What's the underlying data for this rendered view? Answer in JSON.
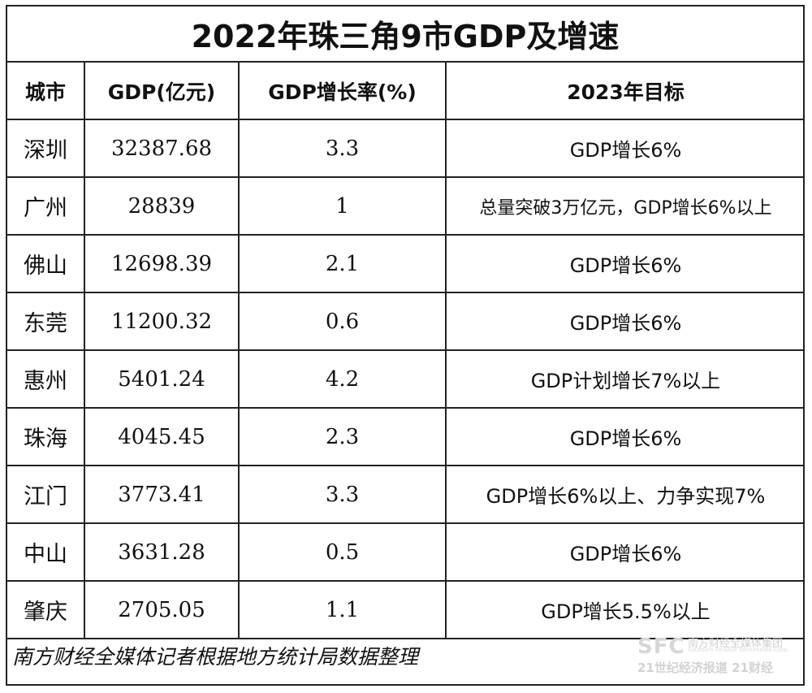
{
  "chart_data": {
    "type": "table",
    "title": "2022年珠三角9市GDP及增速",
    "columns": [
      "城市",
      "GDP(亿元)",
      "GDP增长率(%)",
      "2023年目标"
    ],
    "rows": [
      {
        "city": "深圳",
        "gdp": "32387.68",
        "growth": "3.3",
        "target": "GDP增长6%"
      },
      {
        "city": "广州",
        "gdp": "28839",
        "growth": "1",
        "target": "总量突破3万亿元，GDP增长6%以上"
      },
      {
        "city": "佛山",
        "gdp": "12698.39",
        "growth": "2.1",
        "target": "GDP增长6%"
      },
      {
        "city": "东莞",
        "gdp": "11200.32",
        "growth": "0.6",
        "target": "GDP增长6%"
      },
      {
        "city": "惠州",
        "gdp": "5401.24",
        "growth": "4.2",
        "target": "GDP计划增长7%以上"
      },
      {
        "city": "珠海",
        "gdp": "4045.45",
        "growth": "2.3",
        "target": "GDP增长6%"
      },
      {
        "city": "江门",
        "gdp": "3773.41",
        "growth": "3.3",
        "target": "GDP增长6%以上、力争实现7%"
      },
      {
        "city": "中山",
        "gdp": "3631.28",
        "growth": "0.5",
        "target": "GDP增长6%"
      },
      {
        "city": "肇庆",
        "gdp": "2705.05",
        "growth": "1.1",
        "target": "GDP增长5.5%以上"
      }
    ],
    "source": "南方财经全媒体记者根据地方统计局数据整理"
  },
  "watermark": {
    "mark": "SFC",
    "group_name": "南方财经全媒体集团",
    "group_en": "Southern Finance Omnimedia Corp.",
    "brands": "21世纪经济报道 21财经"
  },
  "colors": {
    "border": "#222222",
    "text": "#111111",
    "watermark": "#d0d0d0"
  }
}
